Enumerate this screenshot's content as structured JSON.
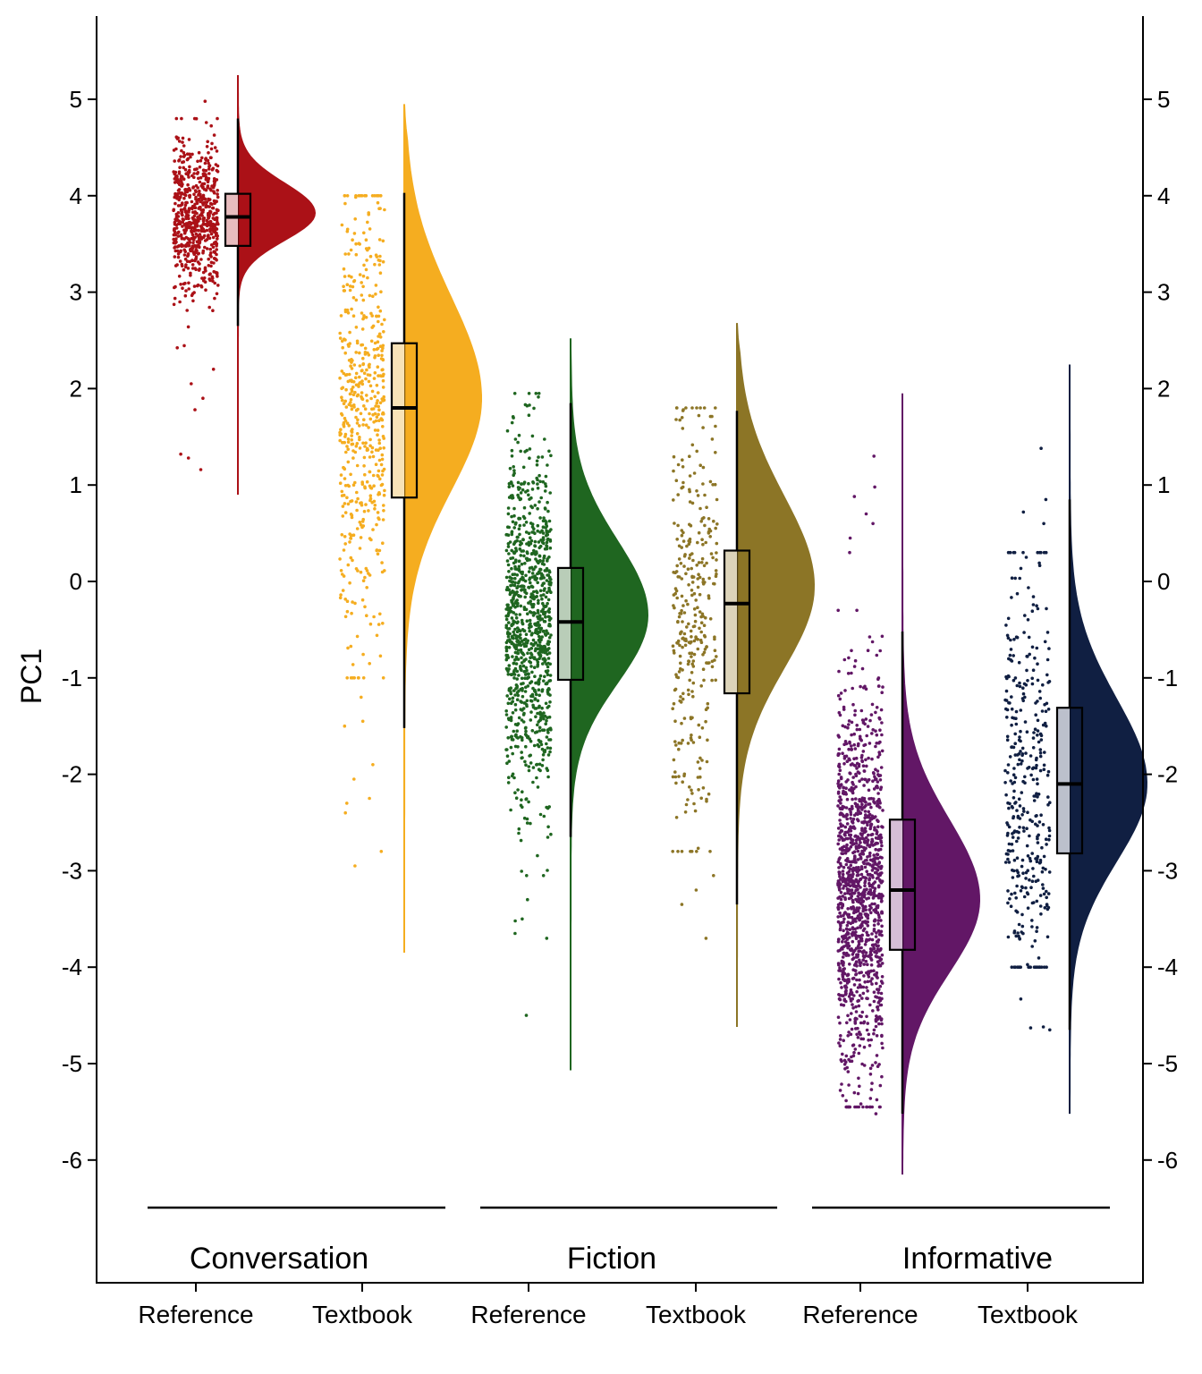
{
  "chart_data": {
    "type": "raincloud",
    "ylabel": "PC1",
    "ylim": [
      -7.3,
      5.9
    ],
    "yticks": [
      5,
      4,
      3,
      2,
      1,
      0,
      -1,
      -2,
      -3,
      -4,
      -5,
      -6
    ],
    "ytick_labels": [
      "5",
      "4",
      "3",
      "2",
      "1",
      "0",
      "-1",
      "-2",
      "-3",
      "-4",
      "-5",
      "-6"
    ],
    "secondary_y_axis": true,
    "categories": [
      "Reference",
      "Textbook",
      "Reference",
      "Textbook",
      "Reference",
      "Textbook"
    ],
    "groups": [
      {
        "label": "Conversation",
        "members": [
          0,
          1
        ]
      },
      {
        "label": "Fiction",
        "members": [
          2,
          3
        ]
      },
      {
        "label": "Informative",
        "members": [
          4,
          5
        ]
      }
    ],
    "series": [
      {
        "group": "Conversation",
        "category": "Reference",
        "color": "#AB1117",
        "box_fill": "#E8BCBE",
        "min": 0.9,
        "q1": 3.48,
        "median": 3.78,
        "q3": 4.02,
        "max": 5.25,
        "whisker_low": 2.65,
        "whisker_high": 4.8,
        "mode": 3.82,
        "density_sd": 0.28,
        "points_range": [
          2.4,
          4.8
        ],
        "n_points": 650,
        "outliers": [
          1.28,
          1.16,
          1.32,
          1.78,
          1.9,
          2.05,
          2.2,
          4.98
        ]
      },
      {
        "group": "Conversation",
        "category": "Textbook",
        "color": "#F5AD20",
        "box_fill": "#F8E3B8",
        "min": -3.85,
        "q1": 0.87,
        "median": 1.8,
        "q3": 2.47,
        "max": 4.95,
        "whisker_low": -1.52,
        "whisker_high": 4.03,
        "mode": 1.9,
        "density_sd": 0.95,
        "points_range": [
          -1.0,
          4.0
        ],
        "n_points": 520,
        "outliers": [
          -1.45,
          -1.9,
          -2.05,
          -2.3,
          -2.4,
          -2.8,
          -2.95,
          -2.25,
          -1.2,
          -1.5
        ]
      },
      {
        "group": "Fiction",
        "category": "Reference",
        "color": "#1F6620",
        "box_fill": "#B9CDB8",
        "min": -5.07,
        "q1": -1.02,
        "median": -0.42,
        "q3": 0.14,
        "max": 2.52,
        "whisker_low": -2.65,
        "whisker_high": 1.85,
        "mode": -0.35,
        "density_sd": 0.7,
        "points_range": [
          -3.05,
          1.95
        ],
        "n_points": 1000,
        "outliers": [
          -3.5,
          -3.65,
          -3.7,
          -4.5,
          -3.3,
          1.95,
          -3.52
        ]
      },
      {
        "group": "Fiction",
        "category": "Textbook",
        "color": "#8C7526",
        "box_fill": "#DCD4BA",
        "min": -4.62,
        "q1": -1.16,
        "median": -0.23,
        "q3": 0.32,
        "max": 2.68,
        "whisker_low": -3.35,
        "whisker_high": 1.77,
        "mode": -0.05,
        "density_sd": 0.85,
        "points_range": [
          -2.8,
          1.8
        ],
        "n_points": 330,
        "outliers": [
          -3.7,
          -3.35,
          -3.2,
          -3.05,
          1.72,
          1.78
        ]
      },
      {
        "group": "Informative",
        "category": "Reference",
        "color": "#621766",
        "box_fill": "#D5BED6",
        "min": -6.15,
        "q1": -3.82,
        "median": -3.2,
        "q3": -2.47,
        "max": 1.95,
        "whisker_low": -5.52,
        "whisker_high": -0.52,
        "mode": -3.3,
        "density_sd": 0.75,
        "points_range": [
          -5.45,
          -0.3
        ],
        "n_points": 1300,
        "outliers": [
          1.3,
          0.98,
          0.88,
          0.6,
          0.7,
          -5.52,
          0.3,
          0.45
        ]
      },
      {
        "group": "Informative",
        "category": "Textbook",
        "color": "#101F42",
        "box_fill": "#BCC0CC",
        "min": -5.52,
        "q1": -2.82,
        "median": -2.1,
        "q3": -1.31,
        "max": 2.25,
        "whisker_low": -4.65,
        "whisker_high": 0.85,
        "mode": -2.1,
        "density_sd": 0.8,
        "points_range": [
          -4.0,
          0.3
        ],
        "n_points": 380,
        "outliers": [
          1.38,
          0.85,
          0.72,
          0.6,
          0.25,
          -4.33,
          -4.62,
          -4.65,
          -4.63
        ]
      }
    ]
  }
}
